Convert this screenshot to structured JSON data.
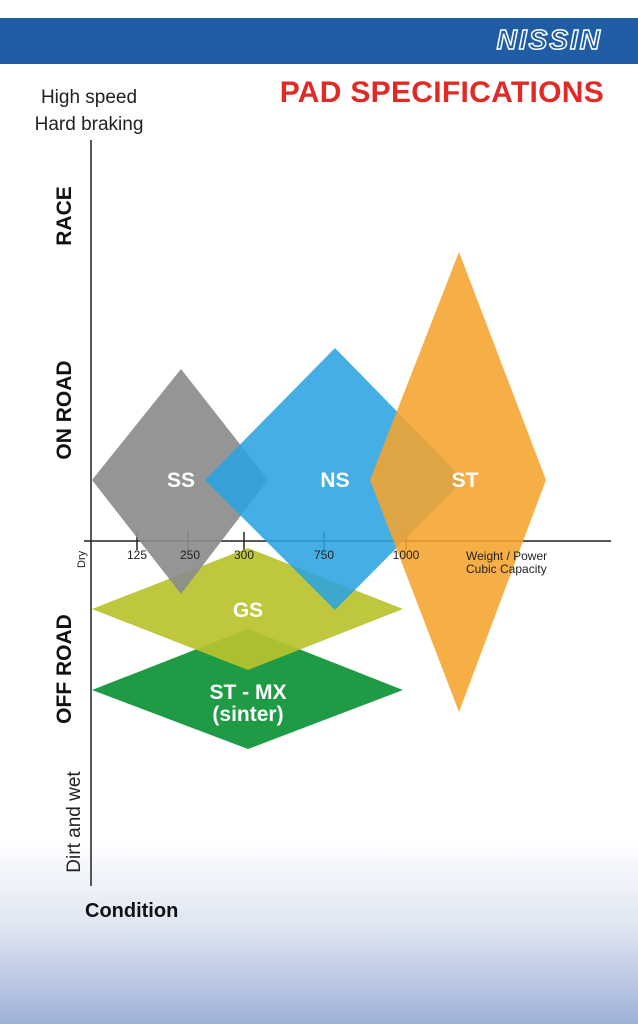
{
  "brand": {
    "logo_text": "NISSIN",
    "bar_color": "#1f5da5"
  },
  "title": "PAD SPECIFICATIONS",
  "y_axis": {
    "top_label": [
      "High speed",
      "Hard braking"
    ],
    "bottom_label": "Dirt and wet",
    "regions": [
      "RACE",
      "ON ROAD",
      "OFF ROAD"
    ],
    "condition_label": "Condition"
  },
  "x_axis": {
    "start_label": "Dry",
    "ticks": [
      "125",
      "250",
      "300",
      "750",
      "1000"
    ],
    "label": [
      "Weight / Power",
      "Cubic Capacity"
    ]
  },
  "pads": [
    {
      "label": "SS",
      "color": "#8c8c8c"
    },
    {
      "label": "NS",
      "color": "#2ba3e0"
    },
    {
      "label": "ST",
      "color": "#f5a42e"
    },
    {
      "label": "GS",
      "color": "#b9c22e"
    },
    {
      "label": [
        "ST - MX",
        "(sinter)"
      ],
      "color": "#1f9a45"
    }
  ]
}
